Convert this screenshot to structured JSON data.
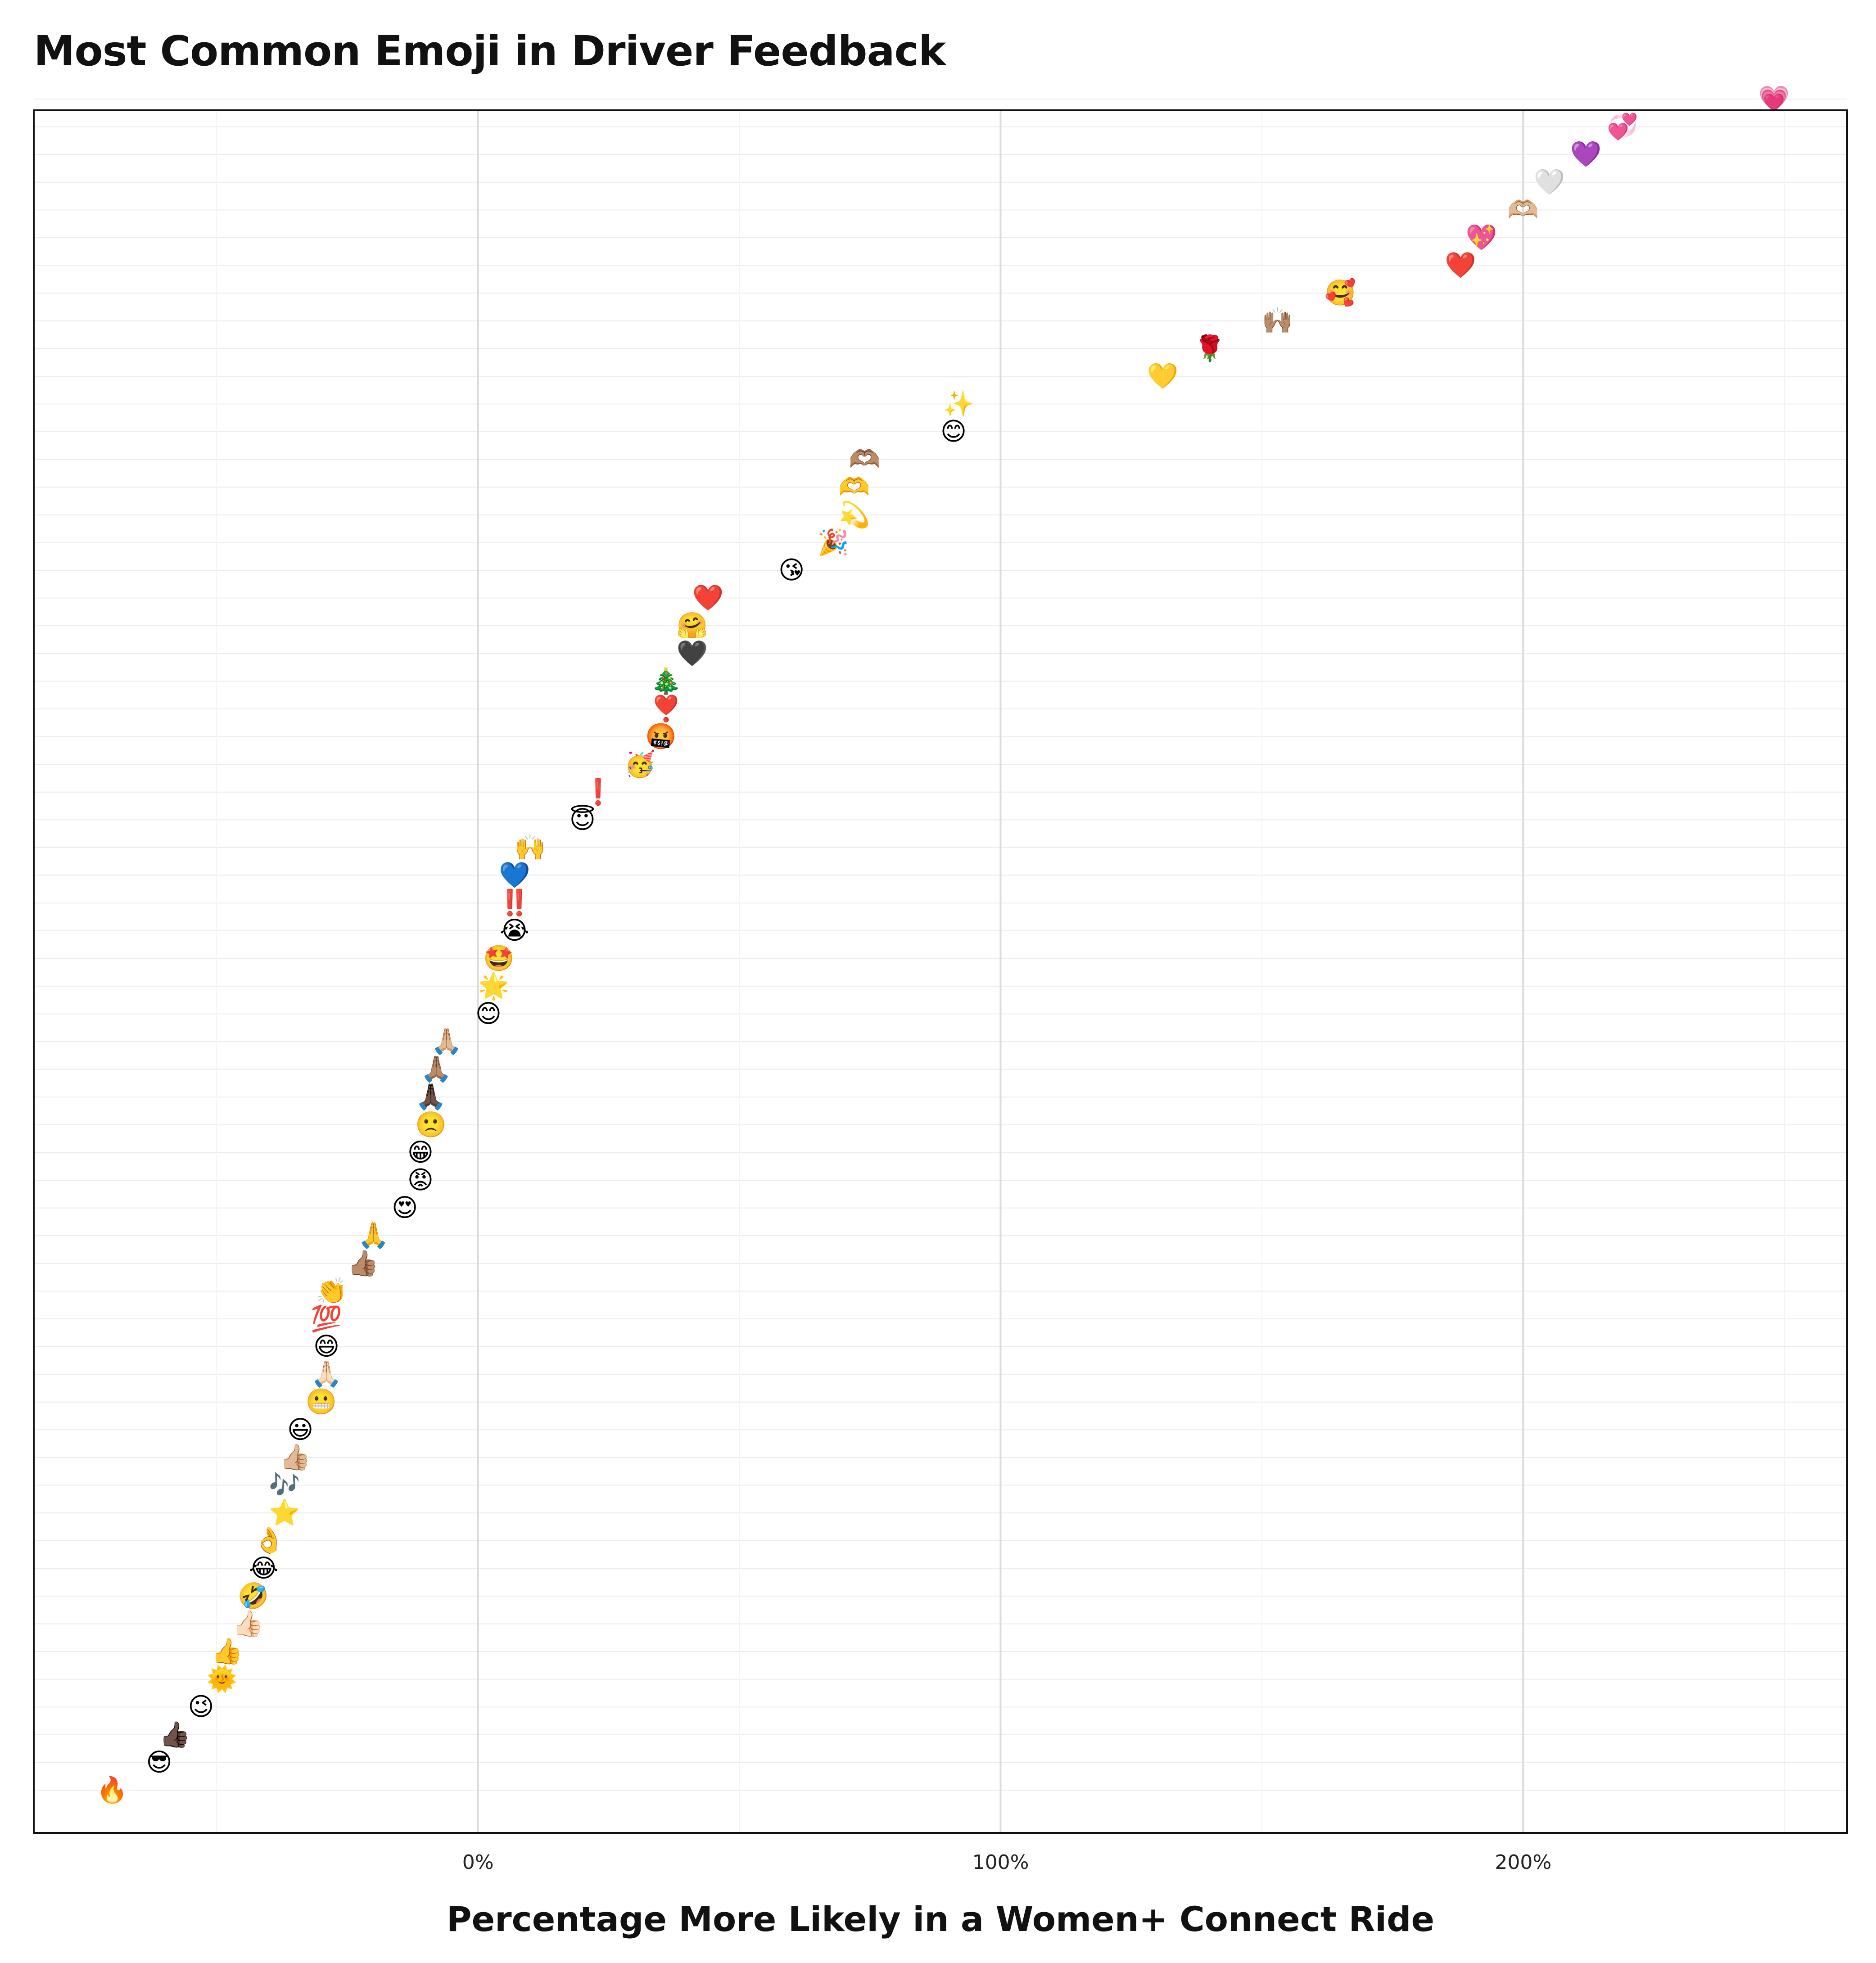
{
  "chart_data": {
    "type": "scatter",
    "title": "Most Common Emoji in Driver Feedback",
    "xlabel": "Percentage More Likely in a Women+ Connect Ride",
    "ylabel": "",
    "xlim": [
      -85,
      262
    ],
    "x_ticks": [
      {
        "value": 0,
        "label": "0%"
      },
      {
        "value": 100,
        "label": "100%"
      },
      {
        "value": 200,
        "label": "200%"
      }
    ],
    "grid": true,
    "points": [
      {
        "emoji": "🔥",
        "x": -70
      },
      {
        "emoji": "😎",
        "x": -61
      },
      {
        "emoji": "👍🏿",
        "x": -58
      },
      {
        "emoji": "😉",
        "x": -53
      },
      {
        "emoji": "🌞",
        "x": -49
      },
      {
        "emoji": "👍",
        "x": -48
      },
      {
        "emoji": "👍🏻",
        "x": -44
      },
      {
        "emoji": "🤣",
        "x": -43
      },
      {
        "emoji": "😂",
        "x": -41
      },
      {
        "emoji": "👌",
        "x": -40
      },
      {
        "emoji": "⭐",
        "x": -37
      },
      {
        "emoji": "🎶",
        "x": -37
      },
      {
        "emoji": "👍🏼",
        "x": -35
      },
      {
        "emoji": "😃",
        "x": -34
      },
      {
        "emoji": "😬",
        "x": -30
      },
      {
        "emoji": "🙏🏻",
        "x": -29
      },
      {
        "emoji": "😄",
        "x": -29
      },
      {
        "emoji": "💯",
        "x": -29
      },
      {
        "emoji": "👏",
        "x": -28
      },
      {
        "emoji": "👍🏽",
        "x": -22
      },
      {
        "emoji": "🙏",
        "x": -20
      },
      {
        "emoji": "😍",
        "x": -14
      },
      {
        "emoji": "😡",
        "x": -11
      },
      {
        "emoji": "😁",
        "x": -11
      },
      {
        "emoji": "🙁",
        "x": -9
      },
      {
        "emoji": "🙏🏿",
        "x": -9
      },
      {
        "emoji": "🙏🏽",
        "x": -8
      },
      {
        "emoji": "🙏🏼",
        "x": -6
      },
      {
        "emoji": "😊",
        "x": 2
      },
      {
        "emoji": "🌟",
        "x": 3
      },
      {
        "emoji": "🤩",
        "x": 4
      },
      {
        "emoji": "😭",
        "x": 7
      },
      {
        "emoji": "‼️",
        "x": 7
      },
      {
        "emoji": "💙",
        "x": 7
      },
      {
        "emoji": "🙌",
        "x": 10
      },
      {
        "emoji": "😇",
        "x": 20
      },
      {
        "emoji": "❗",
        "x": 23
      },
      {
        "emoji": "🥳",
        "x": 31
      },
      {
        "emoji": "🤬",
        "x": 35
      },
      {
        "emoji": "❣️",
        "x": 36
      },
      {
        "emoji": "🎄",
        "x": 36
      },
      {
        "emoji": "🖤",
        "x": 41
      },
      {
        "emoji": "🤗",
        "x": 41
      },
      {
        "emoji": "❤️",
        "x": 44
      },
      {
        "emoji": "😘",
        "x": 60
      },
      {
        "emoji": "🎉",
        "x": 68
      },
      {
        "emoji": "💫",
        "x": 72
      },
      {
        "emoji": "🫶",
        "x": 72
      },
      {
        "emoji": "🫶🏽",
        "x": 74
      },
      {
        "emoji": "😊",
        "x": 91
      },
      {
        "emoji": "✨",
        "x": 92
      },
      {
        "emoji": "💛",
        "x": 131
      },
      {
        "emoji": "🌹",
        "x": 140
      },
      {
        "emoji": "🙌🏽",
        "x": 153
      },
      {
        "emoji": "🥰",
        "x": 165
      },
      {
        "emoji": "❤️",
        "x": 188
      },
      {
        "emoji": "💖",
        "x": 192
      },
      {
        "emoji": "🫶🏼",
        "x": 200
      },
      {
        "emoji": "🤍",
        "x": 205
      },
      {
        "emoji": "💜",
        "x": 212
      },
      {
        "emoji": "💞",
        "x": 219
      },
      {
        "emoji": "💗",
        "x": 248
      }
    ]
  }
}
